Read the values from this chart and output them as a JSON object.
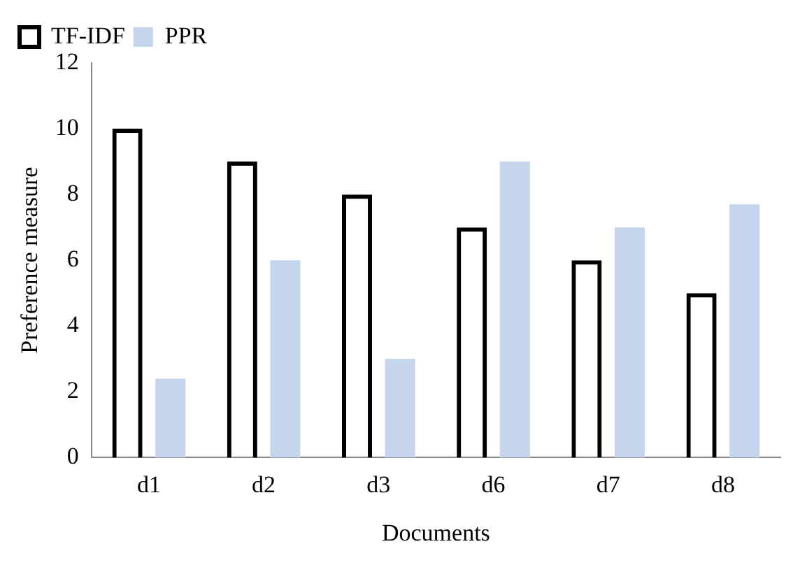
{
  "chart_data": {
    "type": "bar",
    "xlabel": "Documents",
    "ylabel": "Preference measure",
    "categories": [
      "d1",
      "d2",
      "d3",
      "d6",
      "d7",
      "d8"
    ],
    "series": [
      {
        "name": "TF-IDF",
        "color": "#000000",
        "values": [
          10,
          9,
          8,
          7,
          6,
          5
        ]
      },
      {
        "name": "PPR",
        "color": "#c5d5ee",
        "values": [
          2.4,
          6,
          3,
          9,
          7,
          7.7
        ]
      }
    ],
    "ylim": [
      0,
      12
    ],
    "yticks": [
      0,
      2,
      4,
      6,
      8,
      10,
      12
    ],
    "grid": false,
    "legend": "top left"
  }
}
